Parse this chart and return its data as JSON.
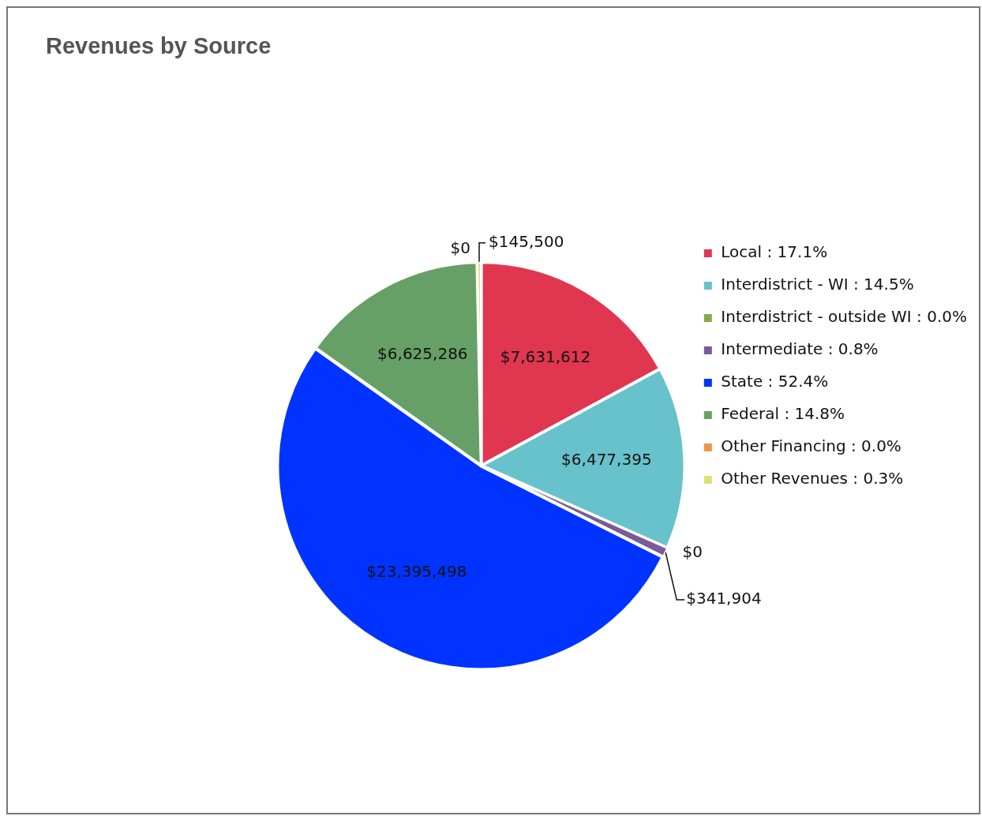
{
  "chart_data": {
    "type": "pie",
    "title": "Revenues by Source",
    "categories": [
      "Local : 17.1%",
      "Interdistrict - WI : 14.5%",
      "Interdistrict - outside WI : 0.0%",
      "Intermediate : 0.8%",
      "State : 52.4%",
      "Federal : 14.8%",
      "Other Financing : 0.0%",
      "Other Revenues : 0.3%"
    ],
    "values": [
      7631612,
      6477395,
      0,
      341904,
      23395498,
      6625286,
      0,
      145500
    ],
    "colors": [
      "#e0364f",
      "#67c2cb",
      "#8aa84a",
      "#7a5a9a",
      "#0033ff",
      "#66a066",
      "#f0954a",
      "#dedd7a"
    ],
    "value_labels": [
      "$7,631,612",
      "$6,477,395",
      "$0",
      "$341,904",
      "$23,395,498",
      "$6,625,286",
      "$0",
      "$145,500"
    ],
    "legend": "right"
  }
}
